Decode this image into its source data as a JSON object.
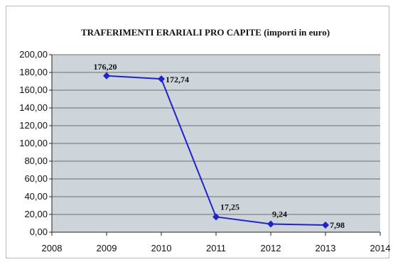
{
  "chart_data": {
    "type": "line",
    "title": "TRAFERIMENTI ERARIALI PRO CAPITE (importi in euro)",
    "xlabel": "",
    "ylabel": "",
    "xlim": [
      2008,
      2014
    ],
    "ylim": [
      0,
      200
    ],
    "x_ticks": [
      "2008",
      "2009",
      "2010",
      "2011",
      "2012",
      "2013",
      "2014"
    ],
    "y_ticks": [
      "0,00",
      "20,00",
      "40,00",
      "60,00",
      "80,00",
      "100,00",
      "120,00",
      "140,00",
      "160,00",
      "180,00",
      "200,00"
    ],
    "grid": true,
    "legend": "none",
    "series": [
      {
        "x": [
          2009,
          2010,
          2011,
          2012,
          2013
        ],
        "values": [
          176.2,
          172.74,
          17.25,
          9.24,
          7.98
        ],
        "labels": [
          "176,20",
          "172,74",
          "17,25",
          "9,24",
          "7,98"
        ],
        "color": "#2222cc"
      }
    ],
    "colors": {
      "plot_background": "#cdd5da",
      "gridline": "#6f6f6f",
      "line": "#2222cc"
    }
  }
}
